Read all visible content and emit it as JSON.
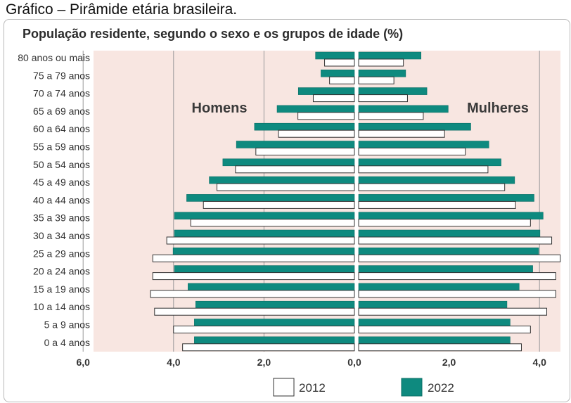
{
  "caption": "Gráfico – Pirâmide etária brasileira.",
  "chart_data": {
    "type": "bar",
    "title": "População residente, segundo o sexo e os grupos de idade (%)",
    "left_label": "Homens",
    "right_label": "Mulheres",
    "categories": [
      "80 anos ou mais",
      "75 a 79 anos",
      "70 a 74 anos",
      "65 a 69 anos",
      "60 a 64 anos",
      "55 a 59 anos",
      "50 a 54 anos",
      "45 a 49 anos",
      "40 a 44 anos",
      "35 a 39 anos",
      "30 a 34 anos",
      "25 a 29 anos",
      "20 a 24 anos",
      "15 a 19 anos",
      "10 a 14 anos",
      "5 a 9 anos",
      "0 a 4 anos"
    ],
    "series": [
      {
        "name": "2012",
        "color": "#ffffff",
        "men": [
          0.66,
          0.55,
          0.91,
          1.25,
          1.68,
          2.18,
          2.63,
          3.04,
          3.34,
          3.62,
          4.15,
          4.46,
          4.46,
          4.51,
          4.42,
          4.0,
          3.8
        ],
        "women": [
          0.99,
          0.78,
          1.08,
          1.43,
          1.9,
          2.36,
          2.86,
          3.23,
          3.47,
          3.8,
          4.27,
          4.46,
          4.36,
          4.36,
          4.16,
          3.8,
          3.6
        ]
      },
      {
        "name": "2022",
        "color": "#0e8a7f",
        "men": [
          0.86,
          0.74,
          1.24,
          1.71,
          2.21,
          2.61,
          2.91,
          3.21,
          3.71,
          3.98,
          3.98,
          4.01,
          3.98,
          3.68,
          3.51,
          3.54,
          3.54
        ],
        "women": [
          1.38,
          1.04,
          1.51,
          1.98,
          2.48,
          2.88,
          3.15,
          3.45,
          3.88,
          4.08,
          4.01,
          3.98,
          3.85,
          3.55,
          3.28,
          3.35,
          3.35
        ]
      }
    ],
    "x_ticks": [
      "6,0",
      "4,0",
      "2,0",
      "0,0",
      "2,0",
      "4,0"
    ],
    "xlim": [
      -6,
      4.5
    ],
    "grid": true,
    "legend_position": "bottom"
  }
}
